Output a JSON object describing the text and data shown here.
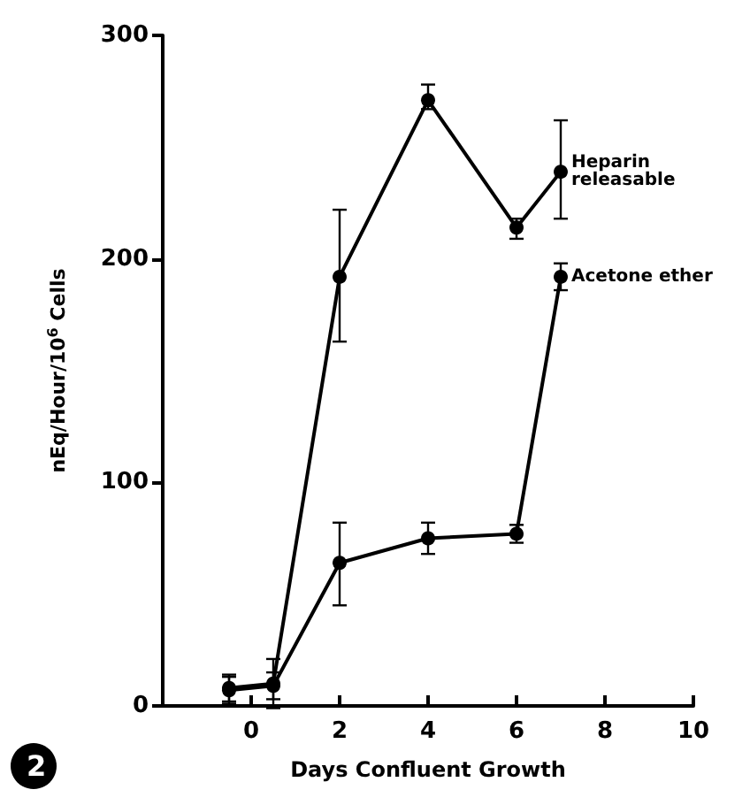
{
  "chart_data": {
    "type": "line",
    "xlabel": "Days Confluent Growth",
    "ylabel": "nEq/Hour/10$^{6}$ Cells",
    "annotations": [
      "2"
    ],
    "x": [
      -0.5,
      0.5,
      2,
      4,
      6,
      7
    ],
    "series": [
      {
        "name": "Heparin releasable",
        "color": "#000000",
        "values": [
          8,
          10,
          192,
          271,
          214,
          239
        ],
        "errors": [
          6,
          11,
          [
            163,
            222
          ],
          [
            267,
            278
          ],
          [
            209,
            218
          ],
          [
            218,
            262
          ]
        ]
      },
      {
        "name": "Acetone ether",
        "color": "#000000",
        "values": [
          7,
          9,
          64,
          75,
          77,
          192
        ],
        "errors": [
          6,
          6,
          [
            45,
            82
          ],
          [
            68,
            82
          ],
          [
            73,
            81
          ],
          [
            186,
            198
          ]
        ]
      }
    ],
    "xlim": [
      -2,
      10
    ],
    "xticks": [
      0,
      2,
      4,
      6,
      8,
      10
    ],
    "ylim": [
      0,
      300
    ],
    "yticks": [
      0,
      100,
      200,
      300
    ],
    "grid": false,
    "legend": false,
    "marker": "circle",
    "line_style": "solid"
  }
}
